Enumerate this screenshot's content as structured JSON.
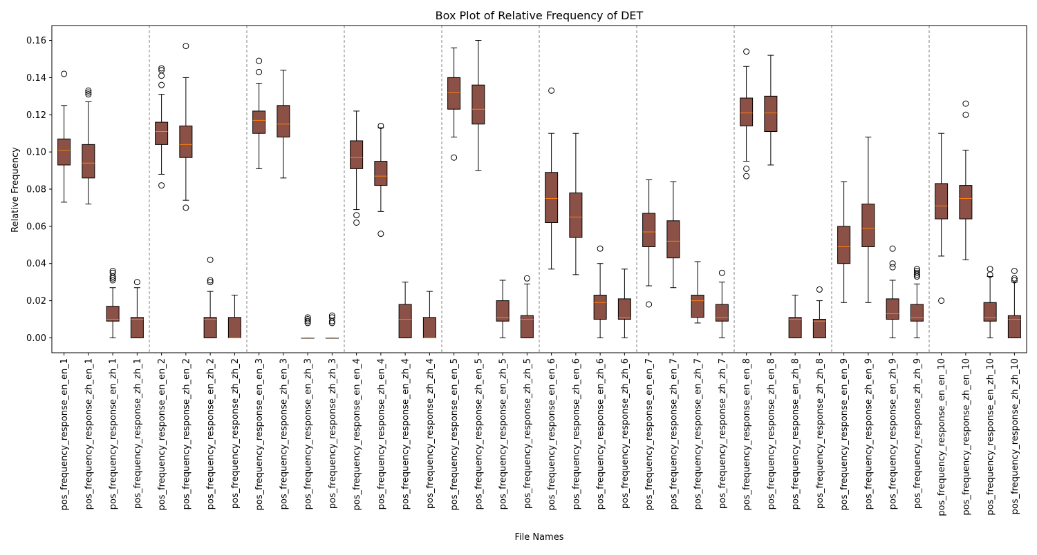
{
  "chart_data": {
    "type": "box",
    "title": "Box Plot of Relative Frequency of DET",
    "xlabel": "File Names",
    "ylabel": "Relative Frequency",
    "ylim": [
      -0.008,
      0.168
    ],
    "yticks": [
      0.0,
      0.02,
      0.04,
      0.06,
      0.08,
      0.1,
      0.12,
      0.14,
      0.16
    ],
    "ytick_labels": [
      "0.00",
      "0.02",
      "0.04",
      "0.06",
      "0.08",
      "0.10",
      "0.12",
      "0.14",
      "0.16"
    ],
    "group_separators": true,
    "box_fill_color": "#8B5146",
    "median_color": "#FF7F0E",
    "separator_color": "#808080",
    "categories": [
      "pos_frequency_response_en_en_1",
      "pos_frequency_response_zh_en_1",
      "pos_frequency_response_en_zh_1",
      "pos_frequency_response_zh_zh_1",
      "pos_frequency_response_en_en_2",
      "pos_frequency_response_zh_en_2",
      "pos_frequency_response_en_zh_2",
      "pos_frequency_response_zh_zh_2",
      "pos_frequency_response_en_en_3",
      "pos_frequency_response_zh_en_3",
      "pos_frequency_response_en_zh_3",
      "pos_frequency_response_zh_zh_3",
      "pos_frequency_response_en_en_4",
      "pos_frequency_response_zh_en_4",
      "pos_frequency_response_en_zh_4",
      "pos_frequency_response_zh_zh_4",
      "pos_frequency_response_en_en_5",
      "pos_frequency_response_zh_en_5",
      "pos_frequency_response_en_zh_5",
      "pos_frequency_response_zh_zh_5",
      "pos_frequency_response_en_en_6",
      "pos_frequency_response_zh_en_6",
      "pos_frequency_response_en_zh_6",
      "pos_frequency_response_zh_zh_6",
      "pos_frequency_response_en_en_7",
      "pos_frequency_response_zh_en_7",
      "pos_frequency_response_en_zh_7",
      "pos_frequency_response_zh_zh_7",
      "pos_frequency_response_en_en_8",
      "pos_frequency_response_zh_en_8",
      "pos_frequency_response_en_zh_8",
      "pos_frequency_response_zh_zh_8",
      "pos_frequency_response_en_en_9",
      "pos_frequency_response_zh_en_9",
      "pos_frequency_response_en_zh_9",
      "pos_frequency_response_zh_zh_9",
      "pos_frequency_response_en_en_10",
      "pos_frequency_response_zh_en_10",
      "pos_frequency_response_en_zh_10",
      "pos_frequency_response_zh_zh_10"
    ],
    "boxes": [
      {
        "whislo": 0.073,
        "q1": 0.093,
        "med": 0.101,
        "q3": 0.107,
        "whishi": 0.125,
        "fliers": [
          0.142
        ]
      },
      {
        "whislo": 0.072,
        "q1": 0.086,
        "med": 0.094,
        "q3": 0.104,
        "whishi": 0.127,
        "fliers": [
          0.131,
          0.132,
          0.133
        ]
      },
      {
        "whislo": 0.0,
        "q1": 0.009,
        "med": 0.01,
        "q3": 0.017,
        "whishi": 0.027,
        "fliers": [
          0.031,
          0.032,
          0.033,
          0.035,
          0.036
        ]
      },
      {
        "whislo": 0.0,
        "q1": 0.0,
        "med": 0.01,
        "q3": 0.011,
        "whishi": 0.027,
        "fliers": [
          0.03
        ]
      },
      {
        "whislo": 0.088,
        "q1": 0.104,
        "med": 0.111,
        "q3": 0.116,
        "whishi": 0.131,
        "fliers": [
          0.082,
          0.136,
          0.141,
          0.144,
          0.145
        ]
      },
      {
        "whislo": 0.074,
        "q1": 0.097,
        "med": 0.104,
        "q3": 0.114,
        "whishi": 0.14,
        "fliers": [
          0.07,
          0.157
        ]
      },
      {
        "whislo": 0.0,
        "q1": 0.0,
        "med": 0.01,
        "q3": 0.011,
        "whishi": 0.025,
        "fliers": [
          0.03,
          0.031,
          0.042
        ]
      },
      {
        "whislo": 0.0,
        "q1": 0.0,
        "med": 0.0,
        "q3": 0.011,
        "whishi": 0.023,
        "fliers": []
      },
      {
        "whislo": 0.091,
        "q1": 0.11,
        "med": 0.117,
        "q3": 0.122,
        "whishi": 0.137,
        "fliers": [
          0.143,
          0.149
        ]
      },
      {
        "whislo": 0.086,
        "q1": 0.108,
        "med": 0.115,
        "q3": 0.125,
        "whishi": 0.144,
        "fliers": []
      },
      {
        "whislo": 0.0,
        "q1": 0.0,
        "med": 0.0,
        "q3": 0.0,
        "whishi": 0.0,
        "fliers": [
          0.008,
          0.009,
          0.01,
          0.011
        ]
      },
      {
        "whislo": 0.0,
        "q1": 0.0,
        "med": 0.0,
        "q3": 0.0,
        "whishi": 0.0,
        "fliers": [
          0.008,
          0.009,
          0.011,
          0.012
        ]
      },
      {
        "whislo": 0.069,
        "q1": 0.091,
        "med": 0.097,
        "q3": 0.106,
        "whishi": 0.122,
        "fliers": [
          0.062,
          0.066
        ]
      },
      {
        "whislo": 0.068,
        "q1": 0.082,
        "med": 0.087,
        "q3": 0.095,
        "whishi": 0.113,
        "fliers": [
          0.056,
          0.114
        ]
      },
      {
        "whislo": 0.0,
        "q1": 0.0,
        "med": 0.01,
        "q3": 0.018,
        "whishi": 0.03,
        "fliers": []
      },
      {
        "whislo": 0.0,
        "q1": 0.0,
        "med": 0.0,
        "q3": 0.011,
        "whishi": 0.025,
        "fliers": []
      },
      {
        "whislo": 0.108,
        "q1": 0.123,
        "med": 0.132,
        "q3": 0.14,
        "whishi": 0.156,
        "fliers": [
          0.097
        ]
      },
      {
        "whislo": 0.09,
        "q1": 0.115,
        "med": 0.123,
        "q3": 0.136,
        "whishi": 0.16,
        "fliers": []
      },
      {
        "whislo": 0.0,
        "q1": 0.009,
        "med": 0.011,
        "q3": 0.02,
        "whishi": 0.031,
        "fliers": []
      },
      {
        "whislo": 0.0,
        "q1": 0.0,
        "med": 0.01,
        "q3": 0.012,
        "whishi": 0.029,
        "fliers": [
          0.032
        ]
      },
      {
        "whislo": 0.037,
        "q1": 0.062,
        "med": 0.075,
        "q3": 0.089,
        "whishi": 0.11,
        "fliers": [
          0.133
        ]
      },
      {
        "whislo": 0.034,
        "q1": 0.054,
        "med": 0.065,
        "q3": 0.078,
        "whishi": 0.11,
        "fliers": []
      },
      {
        "whislo": 0.0,
        "q1": 0.01,
        "med": 0.019,
        "q3": 0.023,
        "whishi": 0.04,
        "fliers": [
          0.048
        ]
      },
      {
        "whislo": 0.0,
        "q1": 0.01,
        "med": 0.011,
        "q3": 0.021,
        "whishi": 0.037,
        "fliers": []
      },
      {
        "whislo": 0.028,
        "q1": 0.049,
        "med": 0.057,
        "q3": 0.067,
        "whishi": 0.085,
        "fliers": [
          0.018
        ]
      },
      {
        "whislo": 0.027,
        "q1": 0.043,
        "med": 0.052,
        "q3": 0.063,
        "whishi": 0.084,
        "fliers": []
      },
      {
        "whislo": 0.008,
        "q1": 0.011,
        "med": 0.02,
        "q3": 0.023,
        "whishi": 0.041,
        "fliers": []
      },
      {
        "whislo": 0.0,
        "q1": 0.009,
        "med": 0.011,
        "q3": 0.018,
        "whishi": 0.03,
        "fliers": [
          0.035
        ]
      },
      {
        "whislo": 0.095,
        "q1": 0.114,
        "med": 0.121,
        "q3": 0.129,
        "whishi": 0.146,
        "fliers": [
          0.087,
          0.091,
          0.154
        ]
      },
      {
        "whislo": 0.093,
        "q1": 0.111,
        "med": 0.121,
        "q3": 0.13,
        "whishi": 0.152,
        "fliers": []
      },
      {
        "whislo": 0.0,
        "q1": 0.0,
        "med": 0.01,
        "q3": 0.011,
        "whishi": 0.023,
        "fliers": []
      },
      {
        "whislo": 0.0,
        "q1": 0.0,
        "med": 0.009,
        "q3": 0.01,
        "whishi": 0.02,
        "fliers": [
          0.026
        ]
      },
      {
        "whislo": 0.019,
        "q1": 0.04,
        "med": 0.049,
        "q3": 0.06,
        "whishi": 0.084,
        "fliers": []
      },
      {
        "whislo": 0.019,
        "q1": 0.049,
        "med": 0.059,
        "q3": 0.072,
        "whishi": 0.108,
        "fliers": []
      },
      {
        "whislo": 0.0,
        "q1": 0.01,
        "med": 0.013,
        "q3": 0.021,
        "whishi": 0.031,
        "fliers": [
          0.038,
          0.04,
          0.048
        ]
      },
      {
        "whislo": 0.0,
        "q1": 0.009,
        "med": 0.011,
        "q3": 0.018,
        "whishi": 0.029,
        "fliers": [
          0.033,
          0.034,
          0.035,
          0.036,
          0.037
        ]
      },
      {
        "whislo": 0.044,
        "q1": 0.064,
        "med": 0.071,
        "q3": 0.083,
        "whishi": 0.11,
        "fliers": [
          0.02
        ]
      },
      {
        "whislo": 0.042,
        "q1": 0.064,
        "med": 0.075,
        "q3": 0.082,
        "whishi": 0.101,
        "fliers": [
          0.12,
          0.126
        ]
      },
      {
        "whislo": 0.0,
        "q1": 0.009,
        "med": 0.011,
        "q3": 0.019,
        "whishi": 0.033,
        "fliers": [
          0.034,
          0.037
        ]
      },
      {
        "whislo": 0.0,
        "q1": 0.0,
        "med": 0.01,
        "q3": 0.012,
        "whishi": 0.03,
        "fliers": [
          0.031,
          0.032,
          0.036
        ]
      }
    ]
  }
}
